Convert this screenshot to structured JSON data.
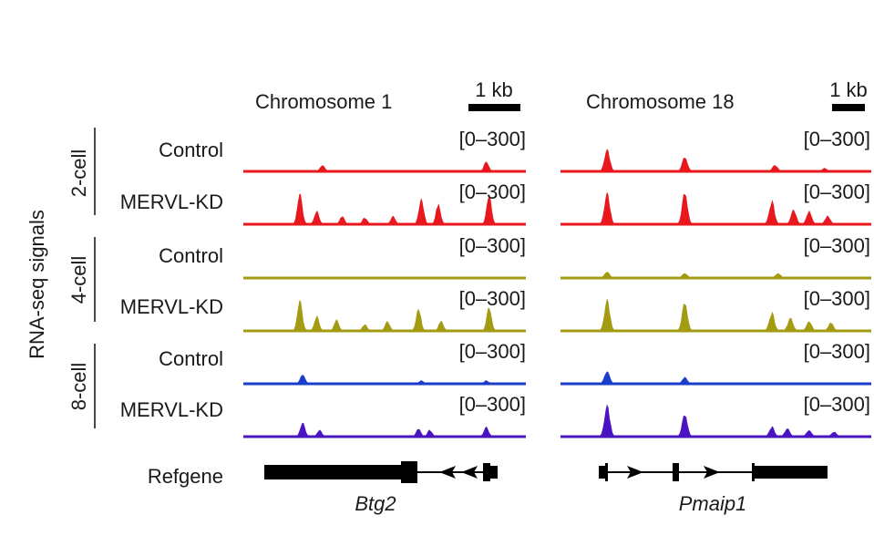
{
  "y_axis_label": "RNA-seq signals",
  "stage_labels": [
    "2-cell",
    "4-cell",
    "8-cell"
  ],
  "condition_labels": [
    "Control",
    "MERVL-KD"
  ],
  "range_label": "[0–300]",
  "refgene_label": "Refgene",
  "panels": [
    {
      "chromosome": "Chromosome 1",
      "scale_bar": "1 kb",
      "gene": "Btg2",
      "gene_structure": {
        "exons": [
          "large 5' exon",
          "middle exon",
          "3' exon"
        ],
        "intron_arrows": "leftward",
        "arrow_count": 2
      }
    },
    {
      "chromosome": "Chromosome 18",
      "scale_bar": "1 kb",
      "gene": "Pmaip1",
      "gene_structure": {
        "exons": [
          "small 5' exon",
          "middle exon",
          "large 3' exon"
        ],
        "intron_arrows": "rightward",
        "arrow_count": 2
      }
    }
  ],
  "tracks": [
    {
      "stage": "2-cell",
      "condition": "Control",
      "color": "#e8181e"
    },
    {
      "stage": "2-cell",
      "condition": "MERVL-KD",
      "color": "#e8181e"
    },
    {
      "stage": "4-cell",
      "condition": "Control",
      "color": "#a39c12"
    },
    {
      "stage": "4-cell",
      "condition": "MERVL-KD",
      "color": "#a39c12"
    },
    {
      "stage": "8-cell",
      "condition": "Control",
      "color": "#1a3ec9"
    },
    {
      "stage": "8-cell",
      "condition": "MERVL-KD",
      "color": "#4a14c2"
    }
  ],
  "signal_profiles": {
    "Btg2": {
      "2-cell": {
        "Control": [
          [
            0.28,
            0.2
          ],
          [
            0.86,
            0.3
          ]
        ],
        "MERVL-KD": [
          [
            0.2,
            1.0
          ],
          [
            0.26,
            0.4
          ],
          [
            0.35,
            0.25
          ],
          [
            0.43,
            0.2
          ],
          [
            0.53,
            0.25
          ],
          [
            0.63,
            0.8
          ],
          [
            0.69,
            0.6
          ],
          [
            0.87,
            0.95
          ]
        ]
      },
      "4-cell": {
        "Control": [],
        "MERVL-KD": [
          [
            0.2,
            1.0
          ],
          [
            0.26,
            0.45
          ],
          [
            0.33,
            0.35
          ],
          [
            0.43,
            0.2
          ],
          [
            0.51,
            0.3
          ],
          [
            0.62,
            0.7
          ],
          [
            0.7,
            0.3
          ],
          [
            0.87,
            0.75
          ]
        ]
      },
      "8-cell": {
        "Control": [
          [
            0.21,
            0.3
          ],
          [
            0.63,
            0.1
          ],
          [
            0.86,
            0.1
          ]
        ],
        "MERVL-KD": [
          [
            0.21,
            0.45
          ],
          [
            0.27,
            0.2
          ],
          [
            0.62,
            0.25
          ],
          [
            0.66,
            0.2
          ],
          [
            0.86,
            0.3
          ]
        ]
      }
    },
    "Pmaip1": {
      "2-cell": {
        "Control": [
          [
            0.15,
            0.7
          ],
          [
            0.4,
            0.45
          ],
          [
            0.69,
            0.2
          ],
          [
            0.85,
            0.1
          ]
        ],
        "MERVL-KD": [
          [
            0.15,
            1.0
          ],
          [
            0.4,
            1.0
          ],
          [
            0.68,
            0.7
          ],
          [
            0.75,
            0.45
          ],
          [
            0.8,
            0.4
          ],
          [
            0.86,
            0.25
          ]
        ]
      },
      "4-cell": {
        "Control": [
          [
            0.15,
            0.2
          ],
          [
            0.4,
            0.15
          ],
          [
            0.7,
            0.15
          ]
        ],
        "MERVL-KD": [
          [
            0.15,
            1.0
          ],
          [
            0.4,
            0.9
          ],
          [
            0.68,
            0.55
          ],
          [
            0.74,
            0.4
          ],
          [
            0.8,
            0.3
          ],
          [
            0.87,
            0.25
          ]
        ]
      },
      "8-cell": {
        "Control": [
          [
            0.15,
            0.4
          ],
          [
            0.4,
            0.2
          ]
        ],
        "MERVL-KD": [
          [
            0.15,
            1.0
          ],
          [
            0.4,
            0.7
          ],
          [
            0.68,
            0.3
          ],
          [
            0.73,
            0.25
          ],
          [
            0.8,
            0.2
          ],
          [
            0.88,
            0.15
          ]
        ]
      }
    }
  }
}
